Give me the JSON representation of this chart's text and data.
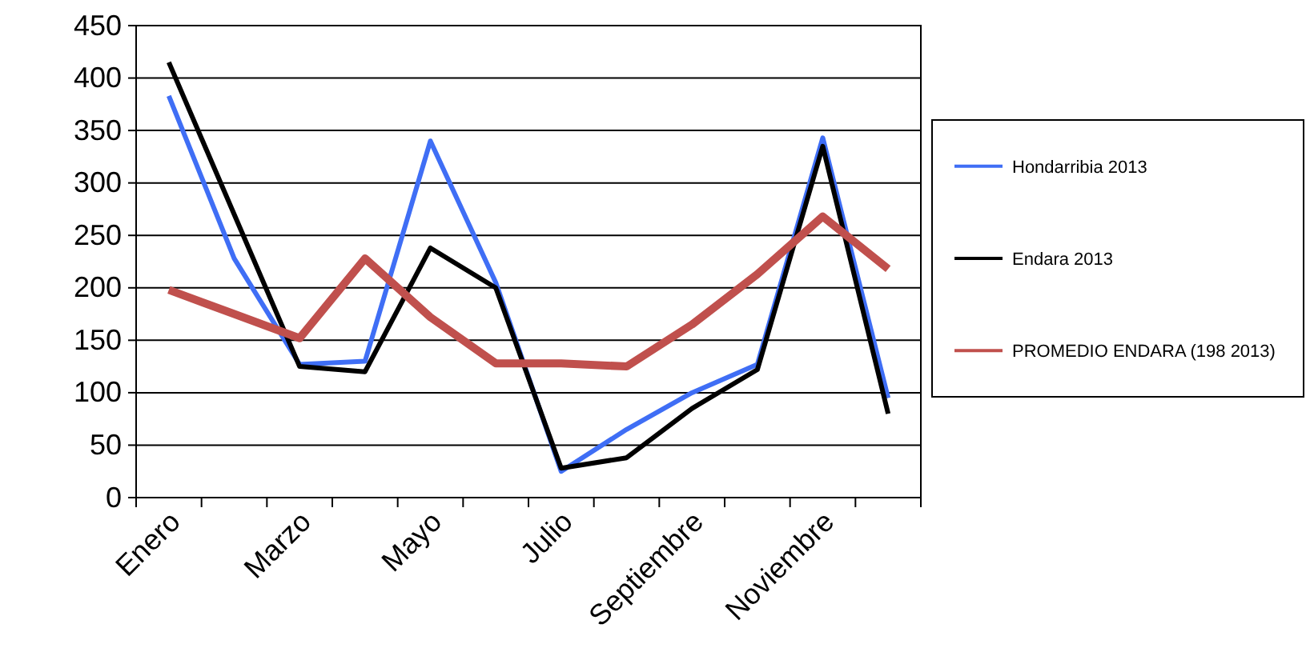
{
  "chart_data": {
    "type": "line",
    "categories": [
      "Enero",
      null,
      "Marzo",
      null,
      "Mayo",
      null,
      "Julio",
      null,
      "Septiembre",
      null,
      "Noviembre",
      null
    ],
    "series": [
      {
        "name": "Hondarribia 2013",
        "color": "#3f6ef5",
        "values": [
          383,
          228,
          127,
          130,
          340,
          205,
          25,
          65,
          100,
          127,
          343,
          95
        ]
      },
      {
        "name": "Endara 2013",
        "color": "#000000",
        "values": [
          415,
          270,
          125,
          120,
          238,
          200,
          28,
          38,
          85,
          122,
          335,
          80
        ]
      },
      {
        "name": "PROMEDIO ENDARA (198 2013)",
        "color": "#c0504d",
        "values": [
          198,
          175,
          152,
          228,
          172,
          128,
          128,
          125,
          165,
          213,
          268,
          218
        ]
      }
    ],
    "ylim": [
      0,
      450
    ],
    "yticks": [
      0,
      50,
      100,
      150,
      200,
      250,
      300,
      350,
      400,
      450
    ],
    "grid": "y",
    "legend": "right",
    "line_style": "solid",
    "marker": "none"
  }
}
